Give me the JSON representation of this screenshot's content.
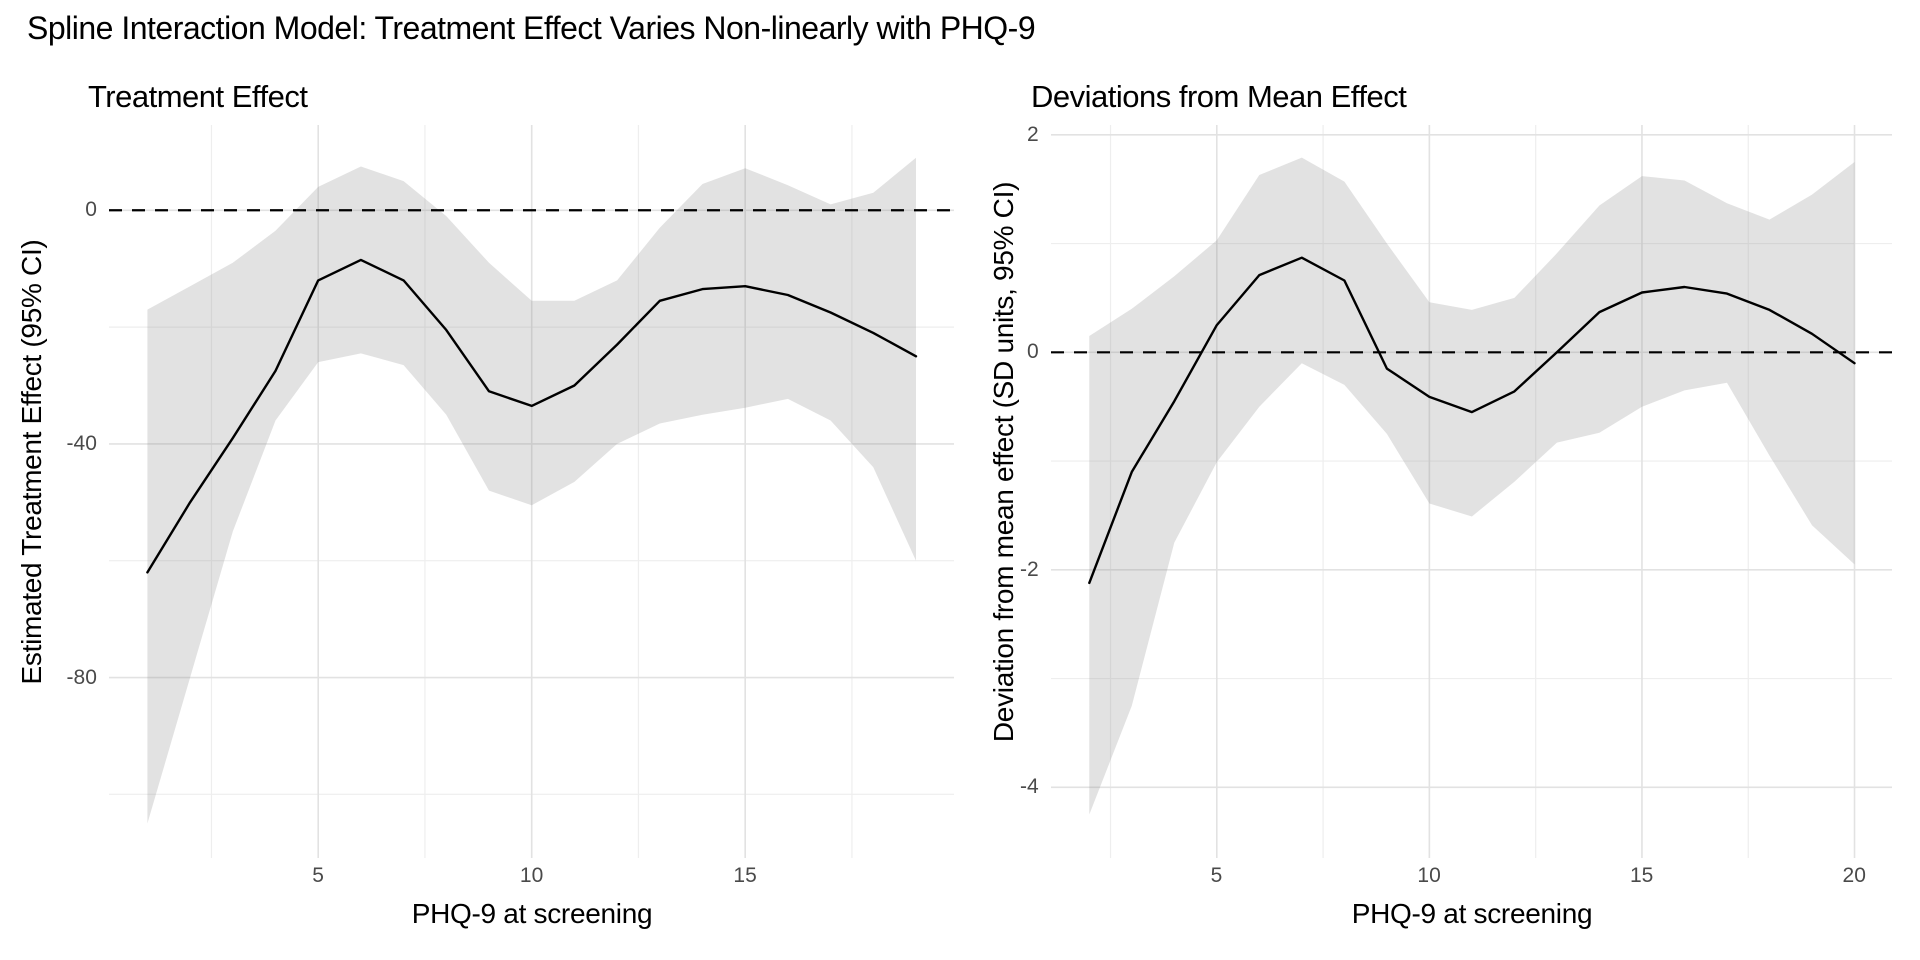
{
  "title": "Spline Interaction Model: Treatment Effect Varies Non-linearly with PHQ-9",
  "chart_data": [
    {
      "type": "line",
      "title": "Treatment Effect",
      "xlabel": "PHQ-9 at screening",
      "ylabel": "Estimated Treatment Effect (95% CI)",
      "legend": "none",
      "grid": true,
      "zero_reference_line": 0,
      "xlim": [
        0.1,
        19.9
      ],
      "ylim": [
        -110.9,
        14.6
      ],
      "xticks": [
        {
          "v": 5,
          "label": "5"
        },
        {
          "v": 10,
          "label": "10"
        },
        {
          "v": 15,
          "label": "15"
        }
      ],
      "yticks": [
        {
          "v": 0,
          "label": "0"
        },
        {
          "v": -40,
          "label": "-40"
        },
        {
          "v": -80,
          "label": "-80"
        }
      ],
      "minor_xticks": [
        2.5,
        7.5,
        12.5,
        17.5
      ],
      "minor_yticks": [
        -20,
        -60,
        -100
      ],
      "x": [
        1,
        2,
        3,
        4,
        5,
        6,
        7,
        8,
        9,
        10,
        11,
        12,
        13,
        14,
        15,
        16,
        17,
        18,
        19
      ],
      "line": [
        -62,
        -50,
        -39,
        -27.5,
        -12,
        -8.5,
        -12,
        -20.5,
        -31,
        -33.5,
        -30,
        -23,
        -15.5,
        -13.5,
        -13,
        -14.5,
        -17.5,
        -21,
        -25
      ],
      "ci_upper": [
        -17,
        -13,
        -9,
        -3.5,
        4,
        7.5,
        5,
        -1,
        -9,
        -15.5,
        -15.5,
        -12,
        -3,
        4.5,
        7.2,
        4.3,
        1,
        3,
        9
      ],
      "ci_lower": [
        -105,
        -80,
        -55,
        -36,
        -26,
        -24.5,
        -26.5,
        -35,
        -48,
        -50.5,
        -46.5,
        -40,
        -36.5,
        -35,
        -33.8,
        -32.3,
        -36,
        -44,
        -60
      ],
      "line_color": "#000000",
      "ci_fill": "rgba(139,139,139,0.25)"
    },
    {
      "type": "line",
      "title": "Deviations from Mean Effect",
      "xlabel": "PHQ-9 at screening",
      "ylabel": "Deviation from mean effect (SD units, 95% CI)",
      "legend": "none",
      "grid": true,
      "zero_reference_line": 0,
      "xlim": [
        1.1,
        20.9
      ],
      "ylim": [
        -4.65,
        2.09
      ],
      "xticks": [
        {
          "v": 5,
          "label": "5"
        },
        {
          "v": 10,
          "label": "10"
        },
        {
          "v": 15,
          "label": "15"
        },
        {
          "v": 20,
          "label": "20"
        }
      ],
      "yticks": [
        {
          "v": 2,
          "label": "2"
        },
        {
          "v": 0,
          "label": "0"
        },
        {
          "v": -2,
          "label": "-2"
        },
        {
          "v": -4,
          "label": "-4"
        }
      ],
      "minor_xticks": [
        2.5,
        7.5,
        12.5,
        17.5
      ],
      "minor_yticks": [
        1,
        -1,
        -3
      ],
      "x": [
        2,
        3,
        4,
        5,
        6,
        7,
        8,
        9,
        10,
        11,
        12,
        13,
        14,
        15,
        16,
        17,
        18,
        19,
        20
      ],
      "line": [
        -2.12,
        -1.1,
        -0.45,
        0.25,
        0.71,
        0.87,
        0.66,
        -0.15,
        -0.41,
        -0.55,
        -0.36,
        0,
        0.37,
        0.55,
        0.6,
        0.54,
        0.39,
        0.17,
        -0.1
      ],
      "ci_upper": [
        0.15,
        0.4,
        0.7,
        1.03,
        1.63,
        1.79,
        1.57,
        1.0,
        0.46,
        0.39,
        0.5,
        0.91,
        1.35,
        1.62,
        1.58,
        1.37,
        1.22,
        1.45,
        1.75
      ],
      "ci_lower": [
        -4.25,
        -3.25,
        -1.75,
        -1.01,
        -0.5,
        -0.1,
        -0.3,
        -0.75,
        -1.39,
        -1.51,
        -1.19,
        -0.83,
        -0.74,
        -0.5,
        -0.35,
        -0.28,
        -0.95,
        -1.59,
        -1.95
      ],
      "line_color": "#000000",
      "ci_fill": "rgba(139,139,139,0.25)"
    }
  ],
  "style": {
    "major_grid_color": "#e2e2e2",
    "minor_grid_color": "#eeeeee",
    "tick_label_color": "#4a4a4a",
    "background": "#ffffff"
  }
}
